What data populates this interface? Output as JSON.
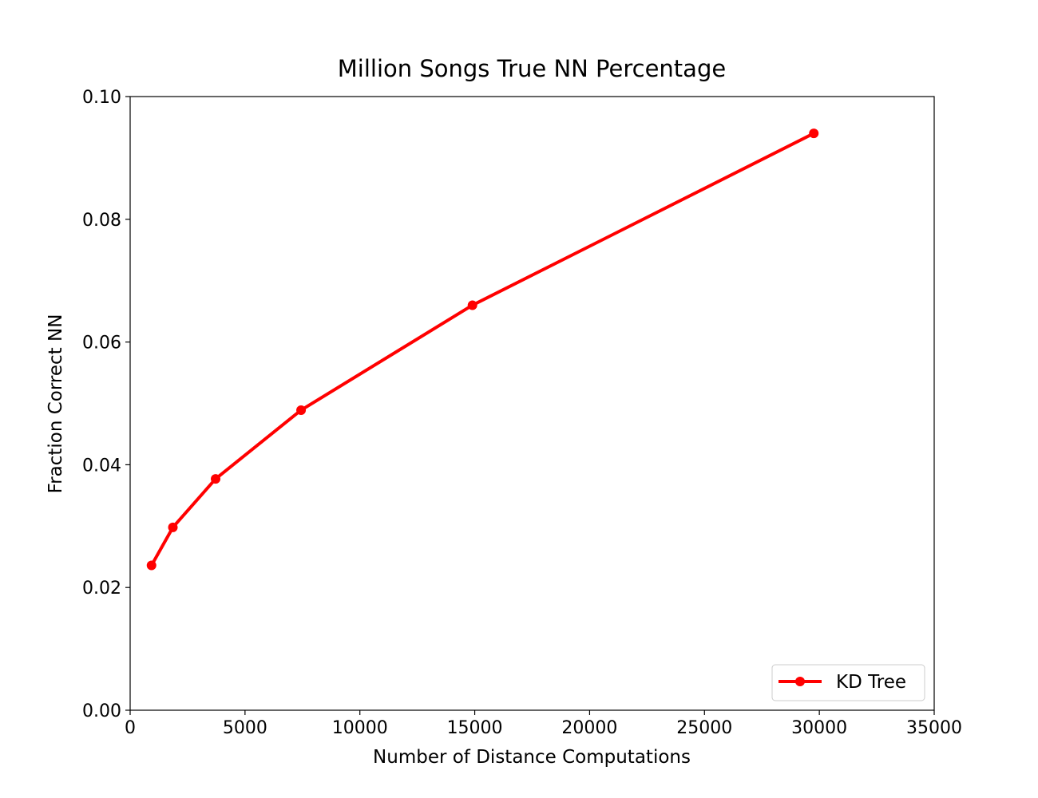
{
  "chart_data": {
    "type": "line",
    "title": "Million Songs True NN Percentage",
    "xlabel": "Number of Distance Computations",
    "ylabel": "Fraction Correct NN",
    "xlim": [
      0,
      35000
    ],
    "ylim": [
      0.0,
      0.1
    ],
    "xticks": [
      "0",
      "5000",
      "10000",
      "15000",
      "20000",
      "25000",
      "30000",
      "35000"
    ],
    "yticks": [
      "0.00",
      "0.02",
      "0.04",
      "0.06",
      "0.08",
      "0.10"
    ],
    "grid": false,
    "legend_position": "lower-right",
    "series": [
      {
        "name": "KD Tree",
        "color": "#ff0000",
        "marker": "circle",
        "x": [
          930,
          1860,
          3720,
          7440,
          14900,
          29760
        ],
        "y": [
          0.0236,
          0.0298,
          0.0377,
          0.0489,
          0.066,
          0.094
        ]
      }
    ]
  }
}
